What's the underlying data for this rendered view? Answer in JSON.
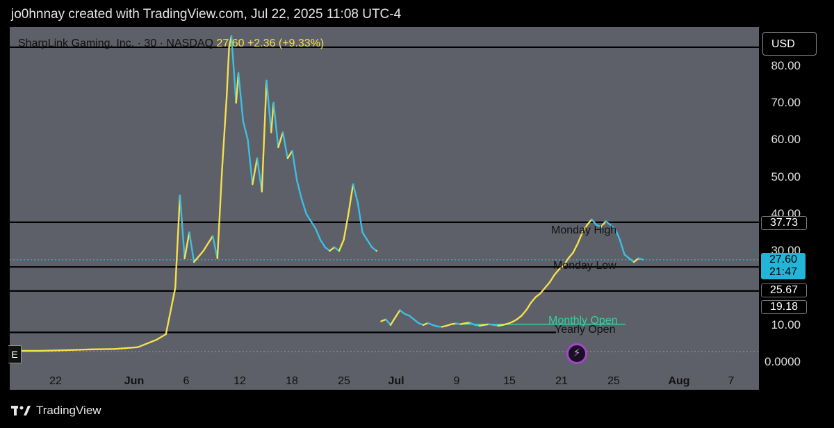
{
  "credit": "jo0hnnay created with TradingView.com, Jul 22, 2025 11:08 UTC-4",
  "symbol": {
    "name": "SharpLink Gaming, Inc. · 30 · NASDAQ",
    "price": "27.60",
    "change": "+2.36 (+9.33%)"
  },
  "currency": "USD",
  "brand": "TradingView",
  "marker_e": "E",
  "colors": {
    "bull": "#f5e14c",
    "bear": "#3cc0e0",
    "plot_bg": "#5d5f69",
    "monthly": "#2ed3a0",
    "bolt": "#a346c9"
  },
  "chart_data": {
    "type": "line",
    "ylim": [
      0,
      88
    ],
    "y_ticks": [
      "80.00",
      "70.00",
      "60.00",
      "50.00",
      "40.00",
      "30.00",
      "10.00",
      "0.0000"
    ],
    "x_ticks": [
      "22",
      "Jun",
      "6",
      "12",
      "18",
      "25",
      "Jul",
      "9",
      "15",
      "21",
      "25",
      "Aug",
      "7"
    ],
    "series": [
      {
        "values": [
          [
            0,
            3.0
          ],
          [
            8,
            3.0
          ],
          [
            20,
            3.2
          ],
          [
            30,
            3.4
          ],
          [
            40,
            3.5
          ],
          [
            50,
            4.0
          ],
          [
            58,
            6.0
          ],
          [
            62,
            7.5
          ],
          [
            66,
            20
          ],
          [
            68,
            45
          ],
          [
            70,
            28
          ],
          [
            72,
            35
          ],
          [
            74,
            27
          ],
          [
            78,
            30
          ],
          [
            82,
            34
          ],
          [
            84,
            28
          ],
          [
            86,
            52
          ],
          [
            88,
            72
          ],
          [
            89,
            85
          ],
          [
            90,
            88
          ],
          [
            92,
            70
          ],
          [
            93,
            78
          ],
          [
            95,
            65
          ],
          [
            97,
            60
          ],
          [
            99,
            48
          ],
          [
            101,
            55
          ],
          [
            103,
            46
          ],
          [
            105,
            76
          ],
          [
            107,
            62
          ],
          [
            108,
            70
          ],
          [
            110,
            58
          ],
          [
            112,
            62
          ],
          [
            114,
            55
          ],
          [
            116,
            57
          ],
          [
            118,
            49
          ],
          [
            120,
            44
          ],
          [
            122,
            40
          ],
          [
            124,
            38
          ],
          [
            126,
            36
          ],
          [
            128,
            33
          ],
          [
            130,
            31
          ],
          [
            132,
            30
          ],
          [
            134,
            31
          ],
          [
            136,
            30
          ],
          [
            138,
            33
          ],
          [
            140,
            40
          ],
          [
            142,
            48
          ],
          [
            144,
            43
          ],
          [
            146,
            35
          ],
          [
            148,
            33
          ],
          [
            150,
            31
          ],
          [
            152,
            30
          ],
          [
            152,
            30
          ],
          [
            154,
            11
          ],
          [
            156,
            11.5
          ],
          [
            158,
            10
          ],
          [
            160,
            12
          ],
          [
            162,
            14
          ],
          [
            164,
            13
          ],
          [
            166,
            12.5
          ],
          [
            168,
            11.5
          ],
          [
            170,
            10.5
          ],
          [
            172,
            10
          ],
          [
            174,
            10.5
          ],
          [
            176,
            10
          ],
          [
            178,
            9.6
          ],
          [
            180,
            9.5
          ],
          [
            182,
            9.8
          ],
          [
            184,
            10.2
          ],
          [
            186,
            10.4
          ],
          [
            188,
            10.2
          ],
          [
            190,
            10.5
          ],
          [
            192,
            10.6
          ],
          [
            194,
            10
          ],
          [
            196,
            9.8
          ],
          [
            198,
            10
          ],
          [
            200,
            10.2
          ],
          [
            202,
            10
          ],
          [
            204,
            9.8
          ],
          [
            206,
            10
          ],
          [
            208,
            10.3
          ],
          [
            210,
            10.8
          ],
          [
            212,
            11.5
          ],
          [
            214,
            12.5
          ],
          [
            216,
            14
          ],
          [
            218,
            16
          ],
          [
            220,
            17.5
          ],
          [
            222,
            18.5
          ],
          [
            224,
            20
          ],
          [
            226,
            21.5
          ],
          [
            228,
            23.5
          ],
          [
            230,
            25
          ],
          [
            232,
            26
          ],
          [
            234,
            28
          ],
          [
            236,
            29.5
          ],
          [
            238,
            32
          ],
          [
            240,
            35
          ],
          [
            242,
            37
          ],
          [
            244,
            38.5
          ],
          [
            246,
            37
          ],
          [
            248,
            36.5
          ],
          [
            250,
            38
          ],
          [
            252,
            37
          ],
          [
            254,
            36
          ],
          [
            256,
            33
          ],
          [
            258,
            29
          ],
          [
            260,
            28
          ],
          [
            262,
            27
          ],
          [
            264,
            28
          ],
          [
            266,
            27.6
          ]
        ]
      }
    ],
    "x_range": [
      0,
      300
    ],
    "levels": [
      {
        "value": 85.0,
        "label": ""
      },
      {
        "value": 37.73,
        "label": "Monday High",
        "tag": "37.73"
      },
      {
        "value": 25.67,
        "label": "Monday Low",
        "tag": "25.67"
      },
      {
        "value": 19.18,
        "label": "",
        "tag": "19.18"
      },
      {
        "value": 8.0,
        "label": "Yearly Open"
      },
      {
        "value": 10.2,
        "label": "Monthly Open"
      }
    ],
    "last_price": {
      "value": "27.60",
      "countdown": "21:47"
    }
  }
}
